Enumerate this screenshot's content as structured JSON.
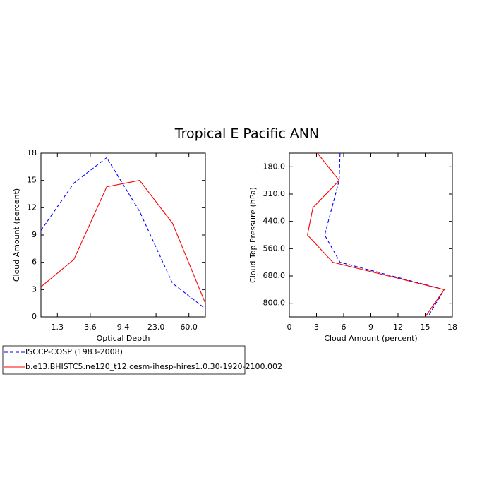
{
  "title": "Tropical E Pacific ANN",
  "chart_data": [
    {
      "type": "line",
      "orientation": "vertical",
      "xlabel": "Optical Depth",
      "ylabel": "Cloud Amount (percent)",
      "x": [
        0,
        1,
        2,
        3,
        4,
        5
      ],
      "xlim": [
        0,
        5
      ],
      "xticks": [
        {
          "value": 0.5,
          "label": "1.3"
        },
        {
          "value": 1.5,
          "label": "3.6"
        },
        {
          "value": 2.5,
          "label": "9.4"
        },
        {
          "value": 3.5,
          "label": "23.0"
        },
        {
          "value": 4.5,
          "label": "60.0"
        }
      ],
      "ylim": [
        0,
        18
      ],
      "yticks": [
        0,
        3,
        6,
        9,
        12,
        15,
        18
      ],
      "series": [
        {
          "name": "ISCCP-COSP (1983-2008)",
          "color": "#0000ff",
          "line_style": "dashed",
          "values": [
            9.5,
            14.7,
            17.5,
            11.6,
            3.7,
            0.9
          ]
        },
        {
          "name": "b.e13.BHISTC5.ne120_t12.cesm-ihesp-hires1.0.30-1920-2100.002",
          "color": "#ff0000",
          "line_style": "solid",
          "values": [
            3.3,
            6.3,
            14.3,
            15.0,
            10.3,
            1.5
          ]
        }
      ]
    },
    {
      "type": "line",
      "orientation": "horizontal",
      "xlabel": "Cloud Amount (percent)",
      "ylabel": "Cloud Top Pressure (hPa)",
      "y": [
        0,
        1,
        2,
        3,
        4,
        5,
        6
      ],
      "ylim": [
        6,
        0
      ],
      "yticks": [
        {
          "value": 0.5,
          "label": "180.0"
        },
        {
          "value": 1.5,
          "label": "310.0"
        },
        {
          "value": 2.5,
          "label": "440.0"
        },
        {
          "value": 3.5,
          "label": "560.0"
        },
        {
          "value": 4.5,
          "label": "680.0"
        },
        {
          "value": 5.5,
          "label": "800.0"
        }
      ],
      "xlim": [
        0,
        18
      ],
      "xticks": [
        0,
        3,
        6,
        9,
        12,
        15,
        18
      ],
      "series": [
        {
          "color": "#0000ff",
          "line_style": "dashed",
          "values": [
            5.6,
            5.5,
            4.7,
            3.9,
            5.6,
            17.1,
            15.3
          ]
        },
        {
          "color": "#ff0000",
          "line_style": "solid",
          "values": [
            3.1,
            5.5,
            2.6,
            2.0,
            4.8,
            17.1,
            15.0
          ]
        }
      ]
    }
  ]
}
